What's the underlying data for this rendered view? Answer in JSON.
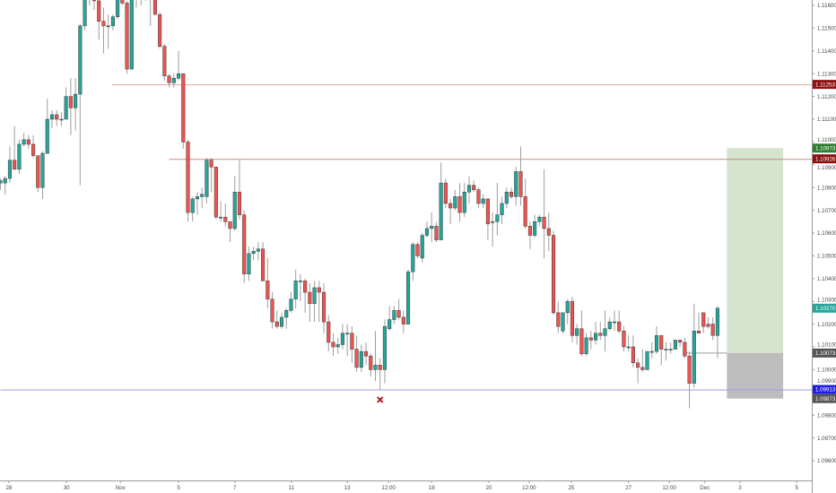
{
  "chart_data": {
    "type": "candlestick",
    "title": "",
    "xlabel": "",
    "ylabel": "",
    "ylim": [
      1.0955,
      1.1162
    ],
    "grid": false,
    "colors": {
      "up": "#26a69a",
      "down": "#ef5350",
      "wick": "#9e9e9e",
      "border": "#3a3a3a"
    },
    "y_ticks": [
      "1.11600",
      "1.11500",
      "1.11400",
      "1.11300",
      "1.11200",
      "1.11100",
      "1.11000",
      "1.10900",
      "1.10800",
      "1.10700",
      "1.10600",
      "1.10500",
      "1.10400",
      "1.10300",
      "1.10200",
      "1.10100",
      "1.10000",
      "1.09900",
      "1.09800",
      "1.09700",
      "1.09600"
    ],
    "x_ticks": [
      {
        "label": "28",
        "bar": 1.8
      },
      {
        "label": "30",
        "bar": 14.1
      },
      {
        "label": "Nov",
        "bar": 25.6
      },
      {
        "label": "5",
        "bar": 38
      },
      {
        "label": "7",
        "bar": 50
      },
      {
        "label": "11",
        "bar": 62.1
      },
      {
        "label": "13",
        "bar": 74
      },
      {
        "label": "12:00",
        "bar": 82.8
      },
      {
        "label": "18",
        "bar": 92
      },
      {
        "label": "20",
        "bar": 104.2
      },
      {
        "label": "12:00",
        "bar": 112.8
      },
      {
        "label": "25",
        "bar": 121.8
      },
      {
        "label": "27",
        "bar": 134
      },
      {
        "label": "12:00",
        "bar": 142.7
      },
      {
        "label": "Dec",
        "bar": 150.3
      },
      {
        "label": "3",
        "bar": 157.8
      },
      {
        "label": "5",
        "bar": 169.9
      }
    ],
    "candles_ohlc": [
      [
        1.1082,
        1.1084,
        1.1079,
        1.1083
      ],
      [
        1.1082,
        1.1085,
        1.1077,
        1.1084
      ],
      [
        1.1084,
        1.1098,
        1.1082,
        1.1092
      ],
      [
        1.1092,
        1.1107,
        1.1088,
        1.1088
      ],
      [
        1.1088,
        1.1101,
        1.1086,
        1.1099
      ],
      [
        1.1099,
        1.1104,
        1.1098,
        1.1101
      ],
      [
        1.1101,
        1.1103,
        1.1097,
        1.1099
      ],
      [
        1.1099,
        1.1103,
        1.1093,
        1.1094
      ],
      [
        1.1094,
        1.1094,
        1.1078,
        1.108
      ],
      [
        1.108,
        1.1096,
        1.1075,
        1.1095
      ],
      [
        1.1095,
        1.1119,
        1.1095,
        1.111
      ],
      [
        1.111,
        1.1114,
        1.1106,
        1.1112
      ],
      [
        1.1112,
        1.1114,
        1.1107,
        1.111
      ],
      [
        1.111,
        1.1113,
        1.1107,
        1.111
      ],
      [
        1.111,
        1.1124,
        1.111,
        1.112
      ],
      [
        1.112,
        1.1128,
        1.1103,
        1.1115
      ],
      [
        1.1115,
        1.1128,
        1.1105,
        1.1121
      ],
      [
        1.1121,
        1.1152,
        1.1081,
        1.1151
      ],
      [
        1.1151,
        1.1166,
        1.1149,
        1.1163
      ],
      [
        1.1163,
        1.1168,
        1.116,
        1.1166
      ],
      [
        1.1166,
        1.1168,
        1.1158,
        1.1162
      ],
      [
        1.1162,
        1.1164,
        1.1145,
        1.1153
      ],
      [
        1.1153,
        1.1159,
        1.1139,
        1.1151
      ],
      [
        1.1151,
        1.1156,
        1.1141,
        1.1151
      ],
      [
        1.1151,
        1.1156,
        1.1149,
        1.1155
      ],
      [
        1.1155,
        1.1166,
        1.1154,
        1.1164
      ],
      [
        1.1164,
        1.1166,
        1.116,
        1.1161
      ],
      [
        1.1161,
        1.1162,
        1.113,
        1.1132
      ],
      [
        1.1132,
        1.1168,
        1.1132,
        1.1166
      ],
      [
        1.1166,
        1.117,
        1.1159,
        1.1167
      ],
      [
        1.1167,
        1.117,
        1.116,
        1.1165
      ],
      [
        1.1165,
        1.1169,
        1.1162,
        1.1166
      ],
      [
        1.1166,
        1.1169,
        1.1151,
        1.1164
      ],
      [
        1.1164,
        1.1166,
        1.1156,
        1.1156
      ],
      [
        1.1156,
        1.1157,
        1.1141,
        1.1142
      ],
      [
        1.1142,
        1.1143,
        1.1127,
        1.1129
      ],
      [
        1.1129,
        1.113,
        1.1124,
        1.1126
      ],
      [
        1.1126,
        1.113,
        1.1124,
        1.1128
      ],
      [
        1.1128,
        1.114,
        1.1127,
        1.113
      ],
      [
        1.113,
        1.113,
        1.1097,
        1.11
      ],
      [
        1.11,
        1.1101,
        1.1065,
        1.1069
      ],
      [
        1.1069,
        1.1076,
        1.1065,
        1.1075
      ],
      [
        1.1075,
        1.1078,
        1.1068,
        1.1076
      ],
      [
        1.1076,
        1.108,
        1.1071,
        1.1077
      ],
      [
        1.1076,
        1.1093,
        1.1073,
        1.1092
      ],
      [
        1.1092,
        1.1093,
        1.1078,
        1.1089
      ],
      [
        1.1089,
        1.1089,
        1.1066,
        1.1067
      ],
      [
        1.1067,
        1.1074,
        1.1065,
        1.1067
      ],
      [
        1.1067,
        1.1073,
        1.1063,
        1.1065
      ],
      [
        1.1065,
        1.1065,
        1.1056,
        1.1062
      ],
      [
        1.1062,
        1.1085,
        1.1061,
        1.1078
      ],
      [
        1.1078,
        1.1092,
        1.1066,
        1.1068
      ],
      [
        1.1068,
        1.107,
        1.1038,
        1.1042
      ],
      [
        1.1042,
        1.1054,
        1.1039,
        1.1051
      ],
      [
        1.1051,
        1.1054,
        1.1048,
        1.1052
      ],
      [
        1.1052,
        1.1056,
        1.1048,
        1.1053
      ],
      [
        1.1053,
        1.1056,
        1.1039,
        1.1039
      ],
      [
        1.1039,
        1.1049,
        1.1027,
        1.1031
      ],
      [
        1.1031,
        1.1034,
        1.1018,
        1.1021
      ],
      [
        1.1021,
        1.1026,
        1.1018,
        1.1019
      ],
      [
        1.1019,
        1.1025,
        1.1018,
        1.1023
      ],
      [
        1.1023,
        1.1027,
        1.1018,
        1.1026
      ],
      [
        1.1026,
        1.1034,
        1.1025,
        1.1031
      ],
      [
        1.1031,
        1.1044,
        1.1027,
        1.1039
      ],
      [
        1.1039,
        1.1042,
        1.103,
        1.1039
      ],
      [
        1.1039,
        1.104,
        1.1025,
        1.1034
      ],
      [
        1.1034,
        1.1038,
        1.1021,
        1.1029
      ],
      [
        1.1029,
        1.1039,
        1.1021,
        1.1036
      ],
      [
        1.1036,
        1.1039,
        1.1021,
        1.1034
      ],
      [
        1.1034,
        1.1038,
        1.1016,
        1.1021
      ],
      [
        1.1021,
        1.1024,
        1.1008,
        1.1012
      ],
      [
        1.1012,
        1.1016,
        1.1006,
        1.101
      ],
      [
        1.101,
        1.1014,
        1.1007,
        1.1011
      ],
      [
        1.1011,
        1.102,
        1.1009,
        1.1016
      ],
      [
        1.1016,
        1.102,
        1.1006,
        1.1016
      ],
      [
        1.1016,
        1.1019,
        1.1003,
        1.1009
      ],
      [
        1.1009,
        1.1015,
        1.0999,
        1.1001
      ],
      [
        1.1001,
        1.1011,
        1.0999,
        1.1008
      ],
      [
        1.1008,
        1.1012,
        1.1002,
        1.1006
      ],
      [
        1.1006,
        1.1007,
        1.0997,
        1.1
      ],
      [
        1.1,
        1.1017,
        1.0995,
        1.1002
      ],
      [
        1.1002,
        1.1005,
        1.0991,
        1.1
      ],
      [
        1.1,
        1.1022,
        1.0994,
        1.1019
      ],
      [
        1.1018,
        1.1028,
        1.1017,
        1.1022
      ],
      [
        1.1022,
        1.1028,
        1.102,
        1.1026
      ],
      [
        1.1026,
        1.1031,
        1.1022,
        1.1023
      ],
      [
        1.1023,
        1.1026,
        1.1016,
        1.102
      ],
      [
        1.102,
        1.1044,
        1.102,
        1.1043
      ],
      [
        1.1043,
        1.1056,
        1.1039,
        1.1055
      ],
      [
        1.1055,
        1.1056,
        1.1049,
        1.105
      ],
      [
        1.1049,
        1.106,
        1.1047,
        1.1059
      ],
      [
        1.1059,
        1.1065,
        1.1058,
        1.1062
      ],
      [
        1.1062,
        1.1069,
        1.1056,
        1.1063
      ],
      [
        1.1063,
        1.1065,
        1.1056,
        1.1057
      ],
      [
        1.1057,
        1.1091,
        1.1057,
        1.1082
      ],
      [
        1.1082,
        1.1084,
        1.1071,
        1.1073
      ],
      [
        1.1073,
        1.1075,
        1.1064,
        1.1071
      ],
      [
        1.1071,
        1.1079,
        1.107,
        1.1076
      ],
      [
        1.1076,
        1.1082,
        1.1065,
        1.1069
      ],
      [
        1.1069,
        1.1082,
        1.1067,
        1.1078
      ],
      [
        1.1078,
        1.1085,
        1.1073,
        1.1081
      ],
      [
        1.1081,
        1.1083,
        1.1078,
        1.1079
      ],
      [
        1.1079,
        1.108,
        1.1071,
        1.1073
      ],
      [
        1.1073,
        1.1077,
        1.1071,
        1.1075
      ],
      [
        1.1075,
        1.1075,
        1.1057,
        1.1064
      ],
      [
        1.1065,
        1.1069,
        1.1054,
        1.1065
      ],
      [
        1.1065,
        1.1082,
        1.1059,
        1.1068
      ],
      [
        1.1068,
        1.1076,
        1.1064,
        1.1073
      ],
      [
        1.1073,
        1.108,
        1.1071,
        1.1078
      ],
      [
        1.1078,
        1.108,
        1.1075,
        1.1076
      ],
      [
        1.1076,
        1.1089,
        1.1072,
        1.1087
      ],
      [
        1.1087,
        1.1098,
        1.1072,
        1.1076
      ],
      [
        1.1076,
        1.1084,
        1.1062,
        1.1063
      ],
      [
        1.1063,
        1.1065,
        1.1053,
        1.1059
      ],
      [
        1.1059,
        1.1068,
        1.1058,
        1.1065
      ],
      [
        1.1065,
        1.1068,
        1.1063,
        1.1067
      ],
      [
        1.1067,
        1.1088,
        1.1049,
        1.1062
      ],
      [
        1.1062,
        1.1069,
        1.1052,
        1.1059
      ],
      [
        1.1059,
        1.1061,
        1.1024,
        1.1025
      ],
      [
        1.1025,
        1.103,
        1.1016,
        1.1019
      ],
      [
        1.1017,
        1.1025,
        1.1016,
        1.1025
      ],
      [
        1.1025,
        1.1031,
        1.102,
        1.103
      ],
      [
        1.103,
        1.1032,
        1.1012,
        1.1015
      ],
      [
        1.1015,
        1.102,
        1.1011,
        1.1018
      ],
      [
        1.1018,
        1.1026,
        1.1006,
        1.1007
      ],
      [
        1.1007,
        1.1016,
        1.1006,
        1.1014
      ],
      [
        1.1014,
        1.1017,
        1.1009,
        1.1013
      ],
      [
        1.1013,
        1.1021,
        1.1011,
        1.1016
      ],
      [
        1.1016,
        1.1021,
        1.1013,
        1.1015
      ],
      [
        1.1015,
        1.1026,
        1.1008,
        1.1018
      ],
      [
        1.1018,
        1.1023,
        1.1017,
        1.1021
      ],
      [
        1.1021,
        1.1026,
        1.1017,
        1.1021
      ],
      [
        1.1021,
        1.1026,
        1.1016,
        1.1017
      ],
      [
        1.1017,
        1.1019,
        1.1008,
        1.101
      ],
      [
        1.101,
        1.1015,
        1.1008,
        1.101
      ],
      [
        1.101,
        1.1015,
        1.1001,
        1.1003
      ],
      [
        1.1003,
        1.1005,
        1.0994,
        1.1001
      ],
      [
        1.1001,
        1.1009,
        1.0999,
        1.1
      ],
      [
        1.1,
        1.1008,
        1.1,
        1.1008
      ],
      [
        1.1008,
        1.1012,
        1.1005,
        1.1008
      ],
      [
        1.1008,
        1.1019,
        1.1007,
        1.1015
      ],
      [
        1.1015,
        1.1015,
        1.1002,
        1.1009
      ],
      [
        1.1009,
        1.1012,
        1.1004,
        1.1009
      ],
      [
        1.1009,
        1.1012,
        1.1007,
        1.1009
      ],
      [
        1.1009,
        1.1013,
        1.1009,
        1.1013
      ],
      [
        1.1013,
        1.1013,
        1.101,
        1.1012
      ],
      [
        1.1012,
        1.1014,
        1.1005,
        1.1006
      ],
      [
        1.1006,
        1.1008,
        1.0983,
        1.0994
      ],
      [
        1.0994,
        1.1029,
        1.0992,
        1.1017
      ],
      [
        1.1017,
        1.1025,
        1.1016,
        1.1016
      ],
      [
        1.1025,
        1.1025,
        1.1016,
        1.1019
      ],
      [
        1.102,
        1.1023,
        1.1018,
        1.1019
      ],
      [
        1.102,
        1.1023,
        1.1013,
        1.1015
      ],
      [
        1.1015,
        1.1028,
        1.1005,
        1.1027
      ]
    ],
    "horizontal_lines": [
      {
        "price": 1.11253,
        "label": "1.11253",
        "from_bar": 23.8,
        "color": "#e0a8a0",
        "tag_color": "#8e1010"
      },
      {
        "price": 1.10926,
        "label": "1.10926",
        "from_bar": 36,
        "color": "#c98a84",
        "tag_color": "#8e1010"
      },
      {
        "price": 1.09913,
        "label": "1.09913",
        "from_bar": 0,
        "color": "#9c9cf0",
        "tag_color": "#1f1fe0"
      }
    ],
    "position": {
      "entry": 1.10073,
      "entry_label": "1.10073",
      "target": 1.10973,
      "target_label": "1.10973",
      "stop": 1.09873,
      "stop_label": "1.09873",
      "from_bar": 155,
      "to_bar": 167,
      "entry_line_from_bar": 146.3,
      "profit_color": "#d5e3cf",
      "loss_color": "#bdbdbd",
      "target_tag_color": "#2e7d32",
      "entry_tag_color": "#555555",
      "stop_tag_color": "#555555"
    },
    "last_price": {
      "price": 1.1027,
      "label": "1.10270",
      "tag_color": "#26a69a"
    },
    "marker": {
      "type": "x-cross",
      "bar": 81,
      "price": 1.09868,
      "color": "#b71c1c"
    }
  }
}
